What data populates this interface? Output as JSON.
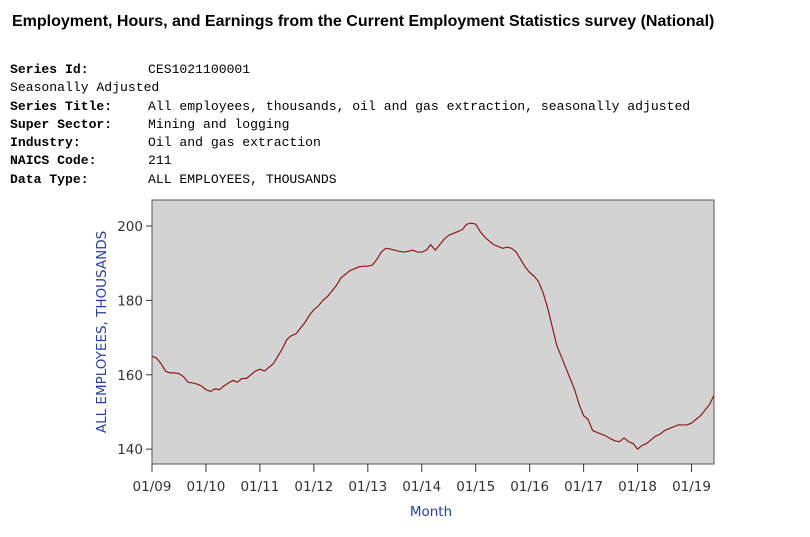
{
  "page": {
    "title": "Employment, Hours, and Earnings from the Current Employment Statistics survey (National)"
  },
  "series_info": {
    "series_id_label": "Series Id:",
    "series_id": "CES1021100001",
    "adjustment": "Seasonally Adjusted",
    "series_title_label": "Series Title:",
    "series_title": "All employees, thousands, oil and gas extraction, seasonally adjusted",
    "super_sector_label": "Super Sector:",
    "super_sector": "Mining and logging",
    "industry_label": "Industry:",
    "industry": "Oil and gas extraction",
    "naics_label": "NAICS Code:",
    "naics": "211",
    "data_type_label": "Data Type:",
    "data_type": "ALL EMPLOYEES, THOUSANDS"
  },
  "chart_data": {
    "type": "line",
    "xlabel": "Month",
    "ylabel": "ALL EMPLOYEES, THOUSANDS",
    "ylim": [
      136,
      207
    ],
    "yticks": [
      140,
      160,
      180,
      200
    ],
    "xlim": [
      "2009-01",
      "2019-06"
    ],
    "xticks": [
      "01/09",
      "01/10",
      "01/11",
      "01/12",
      "01/13",
      "01/14",
      "01/15",
      "01/16",
      "01/17",
      "01/18",
      "01/19"
    ],
    "grid": false,
    "background_color": "#d3d3d3",
    "line_color": "#8b1a1a",
    "series": [
      {
        "x": [
          "2009-01",
          "2009-02",
          "2009-03",
          "2009-04",
          "2009-05",
          "2009-06",
          "2009-07",
          "2009-08",
          "2009-09",
          "2009-10",
          "2009-11",
          "2009-12",
          "2010-01",
          "2010-02",
          "2010-03",
          "2010-04",
          "2010-05",
          "2010-06",
          "2010-07",
          "2010-08",
          "2010-09",
          "2010-10",
          "2010-11",
          "2010-12",
          "2011-01",
          "2011-02",
          "2011-03",
          "2011-04",
          "2011-05",
          "2011-06",
          "2011-07",
          "2011-08",
          "2011-09",
          "2011-10",
          "2011-11",
          "2011-12",
          "2012-01",
          "2012-02",
          "2012-03",
          "2012-04",
          "2012-05",
          "2012-06",
          "2012-07",
          "2012-08",
          "2012-09",
          "2012-10",
          "2012-11",
          "2012-12",
          "2013-01",
          "2013-02",
          "2013-03",
          "2013-04",
          "2013-05",
          "2013-06",
          "2013-07",
          "2013-08",
          "2013-09",
          "2013-10",
          "2013-11",
          "2013-12",
          "2014-01",
          "2014-02",
          "2014-03",
          "2014-04",
          "2014-05",
          "2014-06",
          "2014-07",
          "2014-08",
          "2014-09",
          "2014-10",
          "2014-11",
          "2014-12",
          "2015-01",
          "2015-02",
          "2015-03",
          "2015-04",
          "2015-05",
          "2015-06",
          "2015-07",
          "2015-08",
          "2015-09",
          "2015-10",
          "2015-11",
          "2015-12",
          "2016-01",
          "2016-02",
          "2016-03",
          "2016-04",
          "2016-05",
          "2016-06",
          "2016-07",
          "2016-08",
          "2016-09",
          "2016-10",
          "2016-11",
          "2016-12",
          "2017-01",
          "2017-02",
          "2017-03",
          "2017-04",
          "2017-05",
          "2017-06",
          "2017-07",
          "2017-08",
          "2017-09",
          "2017-10",
          "2017-11",
          "2017-12",
          "2018-01",
          "2018-02",
          "2018-03",
          "2018-04",
          "2018-05",
          "2018-06",
          "2018-07",
          "2018-08",
          "2018-09",
          "2018-10",
          "2018-11",
          "2018-12",
          "2019-01",
          "2019-02",
          "2019-03",
          "2019-04",
          "2019-05",
          "2019-06"
        ],
        "values": [
          165,
          164.5,
          163,
          161,
          160.5,
          160.5,
          160.3,
          159.5,
          158,
          157.8,
          157.5,
          157,
          156,
          155.5,
          156.2,
          156,
          157,
          157.8,
          158.5,
          158,
          159,
          159,
          160,
          161,
          161.5,
          161,
          162,
          163,
          165,
          167,
          169.5,
          170.5,
          171,
          172.5,
          174,
          176,
          177.5,
          178.5,
          180,
          181,
          182.5,
          184,
          186,
          187,
          188,
          188.5,
          189,
          189.2,
          189.2,
          189.5,
          191,
          193,
          194,
          193.8,
          193.5,
          193.2,
          193,
          193.2,
          193.5,
          193,
          193,
          193.5,
          195,
          193.5,
          195,
          196.5,
          197.5,
          198,
          198.5,
          199,
          200.5,
          200.8,
          200.5,
          198.5,
          197,
          196,
          195,
          194.5,
          194,
          194.3,
          194,
          193,
          191,
          189,
          187.5,
          186.5,
          185,
          182,
          178,
          173,
          168,
          165,
          162,
          159,
          156,
          152,
          149,
          148,
          145,
          144.5,
          144,
          143.5,
          142.8,
          142.2,
          142,
          143,
          142,
          141.5,
          140,
          141,
          141.5,
          142.5,
          143.5,
          144,
          145,
          145.5,
          146,
          146.5,
          146.5,
          146.5,
          147,
          148,
          149,
          150.5,
          152,
          154.5
        ]
      }
    ]
  }
}
